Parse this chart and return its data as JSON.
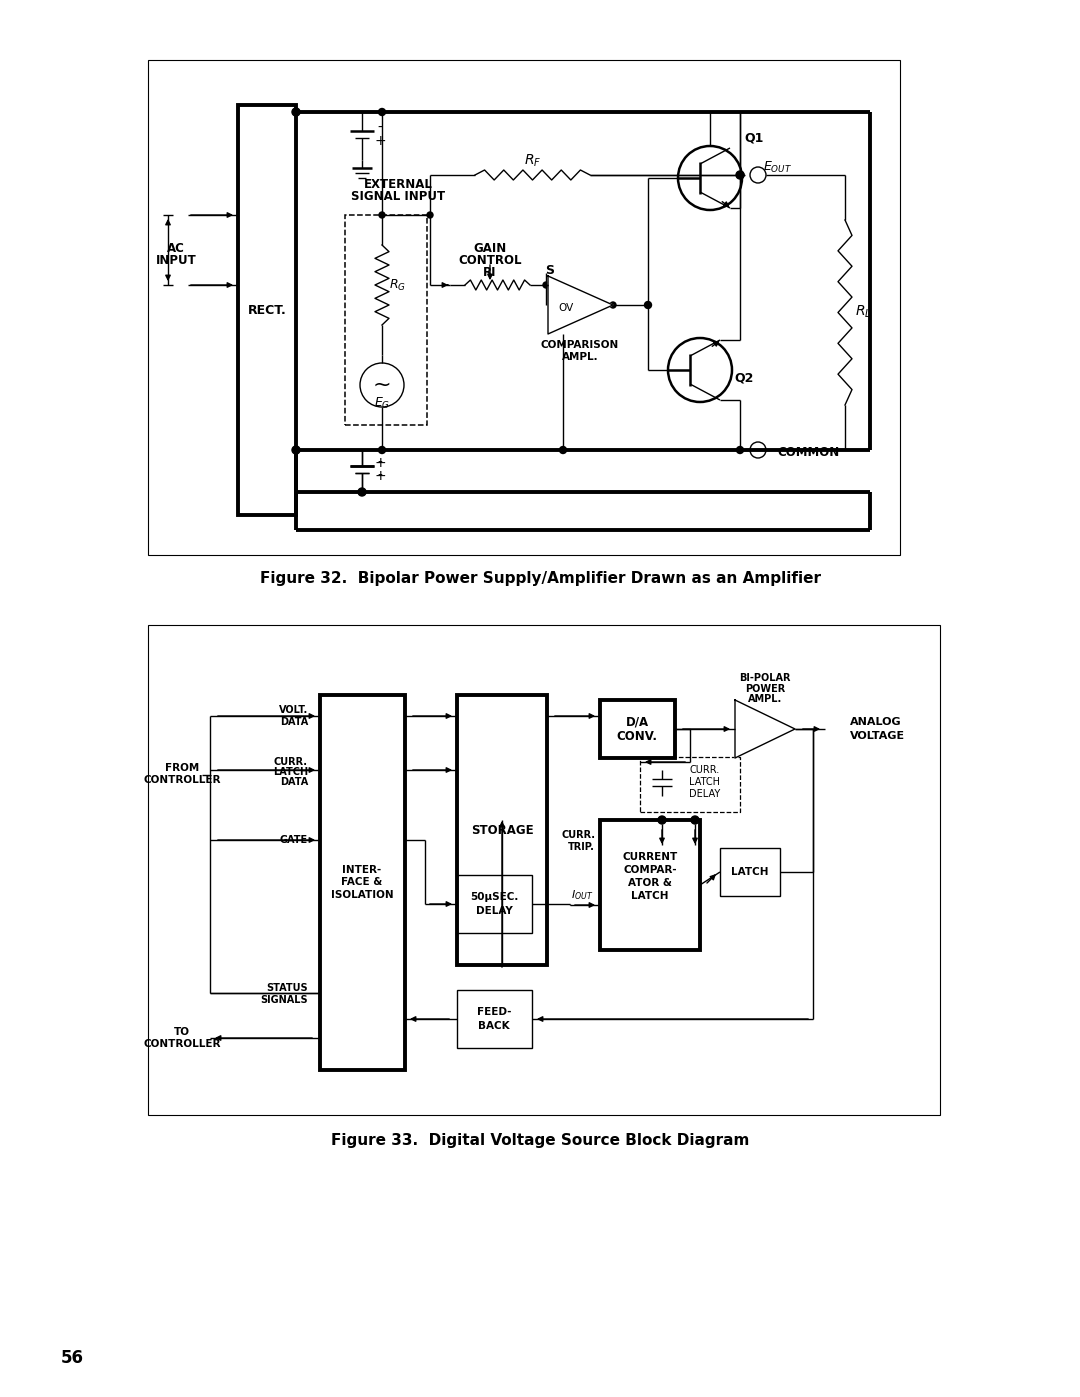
{
  "page_background": "#ffffff",
  "fig1_caption": "Figure 32.  Bipolar Power Supply/Amplifier Drawn as an Amplifier",
  "fig2_caption": "Figure 33.  Digital Voltage Source Block Diagram",
  "page_number": "56"
}
